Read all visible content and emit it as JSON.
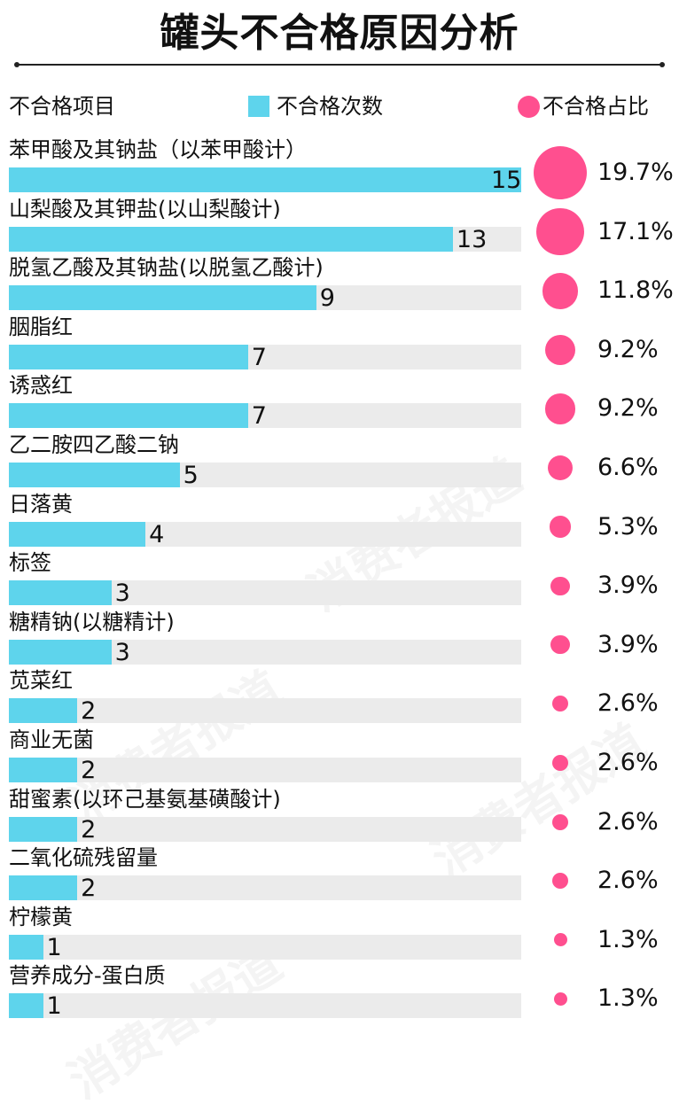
{
  "title": "罐头不合格原因分析",
  "headers": {
    "item": "不合格项目",
    "count": "不合格次数",
    "ratio": "不合格占比"
  },
  "watermark": "消费者报道",
  "colors": {
    "bar": "#5ed4ec",
    "bubble": "#ff4f8f",
    "track": "#ebebeb"
  },
  "chart_data": {
    "type": "bar",
    "orientation": "horizontal",
    "categories": [
      "苯甲酸及其钠盐（以苯甲酸计）",
      "山梨酸及其钾盐(以山梨酸计)",
      "脱氢乙酸及其钠盐(以脱氢乙酸计)",
      "胭脂红",
      "诱惑红",
      "乙二胺四乙酸二钠",
      "日落黄",
      "标签",
      "糖精钠(以糖精计)",
      "苋菜红",
      "商业无菌",
      "甜蜜素(以环己基氨基磺酸计)",
      "二氧化硫残留量",
      "柠檬黄",
      "营养成分-蛋白质"
    ],
    "series": [
      {
        "name": "不合格次数",
        "values": [
          15,
          13,
          9,
          7,
          7,
          5,
          4,
          3,
          3,
          2,
          2,
          2,
          2,
          1,
          1
        ]
      },
      {
        "name": "不合格占比",
        "values": [
          "19.7%",
          "17.1%",
          "11.8%",
          "9.2%",
          "9.2%",
          "6.6%",
          "5.3%",
          "3.9%",
          "3.9%",
          "2.6%",
          "2.6%",
          "2.6%",
          "2.6%",
          "1.3%",
          "1.3%"
        ]
      }
    ],
    "xlim": [
      0,
      15
    ],
    "legend": "top"
  }
}
